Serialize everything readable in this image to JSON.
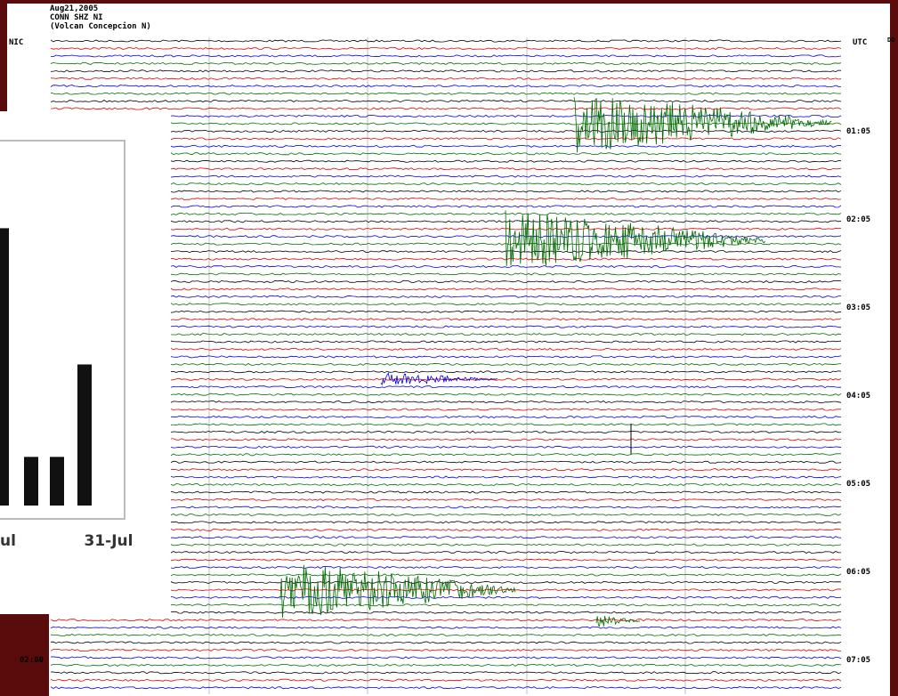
{
  "header": {
    "date": "Aug21,2005",
    "station": "CONN SHZ NI",
    "site": "(Volcan Concepcion N)",
    "left_code": "NIC",
    "right_code": "UTC",
    "edge_code": "DO"
  },
  "time_labels": [
    "01:05",
    "02:05",
    "03:05",
    "04:05",
    "05:05",
    "06:05",
    "07:05"
  ],
  "left_time": "02:00",
  "chart_data": {
    "type": "bar",
    "categories": [
      "ul",
      null,
      null,
      "31-Jul"
    ],
    "values": [
      5.7,
      1,
      1,
      2.9
    ],
    "color": "#111111",
    "ylim": [
      0,
      6
    ]
  }
}
